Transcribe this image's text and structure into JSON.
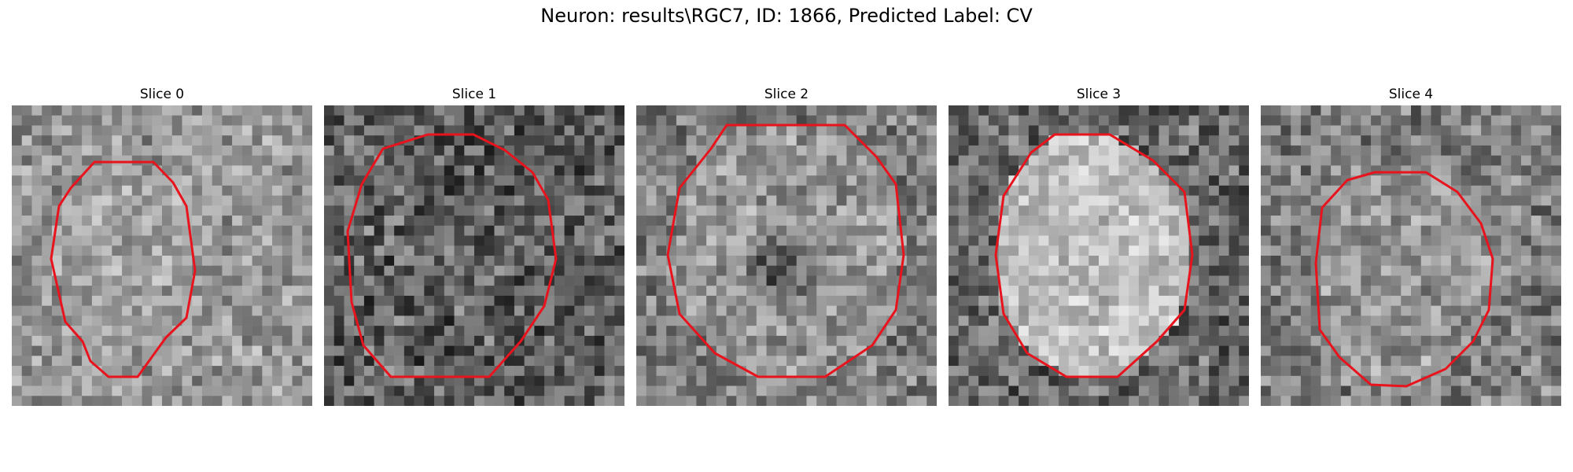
{
  "figure": {
    "title": "Neuron: results\\RGC7, ID: 1866, Predicted Label: CV"
  },
  "panels": [
    {
      "title": "Slice 0"
    },
    {
      "title": "Slice 1"
    },
    {
      "title": "Slice 2"
    },
    {
      "title": "Slice 3"
    },
    {
      "title": "Slice 4"
    }
  ],
  "colors": {
    "contour": "#e8131c",
    "background": "#ffffff"
  }
}
